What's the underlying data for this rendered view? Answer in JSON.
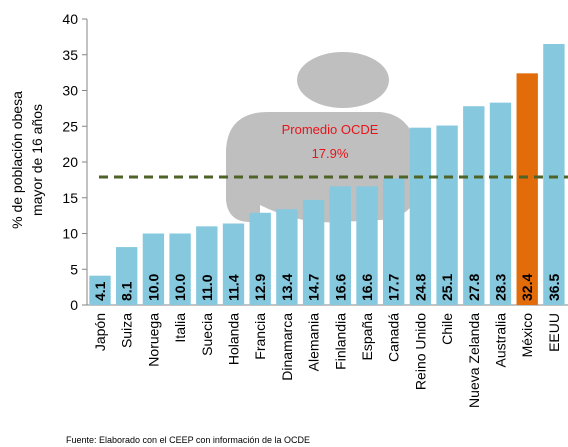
{
  "chart_data": {
    "type": "bar",
    "y_label": [
      "% de población obesa",
      "mayor de 16 años"
    ],
    "categories": [
      "Japón",
      "Suiza",
      "Noruega",
      "Italia",
      "Suecia",
      "Holanda",
      "Francia",
      "Dinamarca",
      "Alemania",
      "Finlandia",
      "España",
      "Canadá",
      "Reino Unido",
      "Chile",
      "Nueva Zelanda",
      "Australia",
      "México",
      "EEUU"
    ],
    "values": [
      4.1,
      8.1,
      10.0,
      10.0,
      11.0,
      11.4,
      12.9,
      13.4,
      14.7,
      16.6,
      16.6,
      17.7,
      24.8,
      25.1,
      27.8,
      28.3,
      32.4,
      36.5
    ],
    "value_labels": [
      "4.1",
      "8.1",
      "10.0",
      "10.0",
      "11.0",
      "11.4",
      "12.9",
      "13.4",
      "14.7",
      "16.6",
      "16.6",
      "17.7",
      "24.8",
      "25.1",
      "27.8",
      "28.3",
      "32.4",
      "36.5"
    ],
    "colors": [
      "#86c8de",
      "#86c8de",
      "#86c8de",
      "#86c8de",
      "#86c8de",
      "#86c8de",
      "#86c8de",
      "#86c8de",
      "#86c8de",
      "#86c8de",
      "#86c8de",
      "#86c8de",
      "#86c8de",
      "#86c8de",
      "#86c8de",
      "#86c8de",
      "#e36c0a",
      "#86c8de"
    ],
    "average": {
      "value": 17.9,
      "label": "Promedio OCDE",
      "value_label": "17.9%",
      "color": "#4f6228"
    },
    "ylim": [
      0,
      40
    ],
    "yticks": [
      0,
      5,
      10,
      15,
      20,
      25,
      30,
      35,
      40
    ],
    "source": "Fuente: Elaborado con el CEEP con información de la OCDE"
  }
}
